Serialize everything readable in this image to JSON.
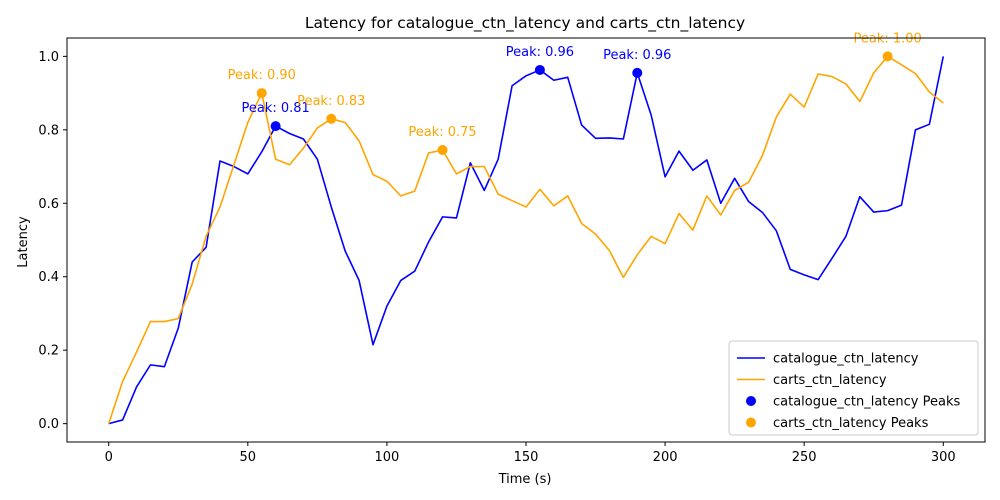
{
  "chart_data": {
    "type": "line",
    "title": "Latency for catalogue_ctn_latency and carts_ctn_latency",
    "xlabel": "Time (s)",
    "ylabel": "Latency",
    "xlim": [
      -15,
      315
    ],
    "ylim": [
      -0.05,
      1.05
    ],
    "x_ticks": [
      0,
      50,
      100,
      150,
      200,
      250,
      300
    ],
    "y_ticks": [
      0.0,
      0.2,
      0.4,
      0.6,
      0.8,
      1.0
    ],
    "x_tick_labels": [
      "0",
      "50",
      "100",
      "150",
      "200",
      "250",
      "300"
    ],
    "y_tick_labels": [
      "0.0",
      "0.2",
      "0.4",
      "0.6",
      "0.8",
      "1.0"
    ],
    "grid": false,
    "legend_position": "bottom-right",
    "x": [
      0,
      5,
      10,
      15,
      20,
      25,
      30,
      35,
      40,
      45,
      50,
      55,
      60,
      65,
      70,
      75,
      80,
      85,
      90,
      95,
      100,
      105,
      110,
      115,
      120,
      125,
      130,
      135,
      140,
      145,
      150,
      155,
      160,
      165,
      170,
      175,
      180,
      185,
      190,
      195,
      200,
      205,
      210,
      215,
      220,
      225,
      230,
      235,
      240,
      245,
      250,
      255,
      260,
      265,
      270,
      275,
      280,
      285,
      290,
      295,
      300
    ],
    "series": [
      {
        "name": "catalogue_ctn_latency",
        "color": "#0000ff",
        "values": [
          0.0,
          0.01,
          0.1,
          0.16,
          0.155,
          0.26,
          0.44,
          0.48,
          0.715,
          0.7,
          0.68,
          0.74,
          0.81,
          0.79,
          0.775,
          0.72,
          0.59,
          0.47,
          0.39,
          0.215,
          0.32,
          0.39,
          0.415,
          0.495,
          0.563,
          0.56,
          0.71,
          0.635,
          0.72,
          0.92,
          0.947,
          0.963,
          0.935,
          0.943,
          0.813,
          0.777,
          0.778,
          0.775,
          0.955,
          0.84,
          0.672,
          0.742,
          0.69,
          0.718,
          0.6,
          0.668,
          0.605,
          0.575,
          0.525,
          0.42,
          0.405,
          0.392,
          0.45,
          0.51,
          0.618,
          0.576,
          0.58,
          0.595,
          0.8,
          0.815,
          1.0
        ]
      },
      {
        "name": "carts_ctn_latency",
        "color": "#ffa500",
        "values": [
          0.0,
          0.115,
          0.195,
          0.278,
          0.278,
          0.286,
          0.38,
          0.51,
          0.59,
          0.705,
          0.82,
          0.9,
          0.72,
          0.705,
          0.75,
          0.805,
          0.83,
          0.82,
          0.77,
          0.678,
          0.66,
          0.62,
          0.633,
          0.737,
          0.745,
          0.68,
          0.7,
          0.7,
          0.625,
          0.607,
          0.59,
          0.638,
          0.593,
          0.62,
          0.545,
          0.516,
          0.471,
          0.398,
          0.46,
          0.51,
          0.49,
          0.572,
          0.527,
          0.62,
          0.568,
          0.635,
          0.657,
          0.73,
          0.835,
          0.897,
          0.862,
          0.952,
          0.945,
          0.925,
          0.877,
          0.955,
          1.0,
          0.977,
          0.953,
          0.903,
          0.873
        ]
      }
    ],
    "peaks": [
      {
        "series": "catalogue_ctn_latency",
        "x": 60,
        "y": 0.81,
        "label": "Peak: 0.81"
      },
      {
        "series": "catalogue_ctn_latency",
        "x": 155,
        "y": 0.963,
        "label": "Peak: 0.96"
      },
      {
        "series": "catalogue_ctn_latency",
        "x": 190,
        "y": 0.955,
        "label": "Peak: 0.96"
      },
      {
        "series": "carts_ctn_latency",
        "x": 55,
        "y": 0.9,
        "label": "Peak: 0.90"
      },
      {
        "series": "carts_ctn_latency",
        "x": 80,
        "y": 0.83,
        "label": "Peak: 0.83"
      },
      {
        "series": "carts_ctn_latency",
        "x": 120,
        "y": 0.745,
        "label": "Peak: 0.75"
      },
      {
        "series": "carts_ctn_latency",
        "x": 280,
        "y": 1.0,
        "label": "Peak: 1.00"
      }
    ],
    "legend": [
      {
        "label": "catalogue_ctn_latency",
        "kind": "line",
        "color": "#0000ff"
      },
      {
        "label": "carts_ctn_latency",
        "kind": "line",
        "color": "#ffa500"
      },
      {
        "label": "catalogue_ctn_latency Peaks",
        "kind": "marker",
        "color": "#0000ff"
      },
      {
        "label": "carts_ctn_latency Peaks",
        "kind": "marker",
        "color": "#ffa500"
      }
    ]
  }
}
